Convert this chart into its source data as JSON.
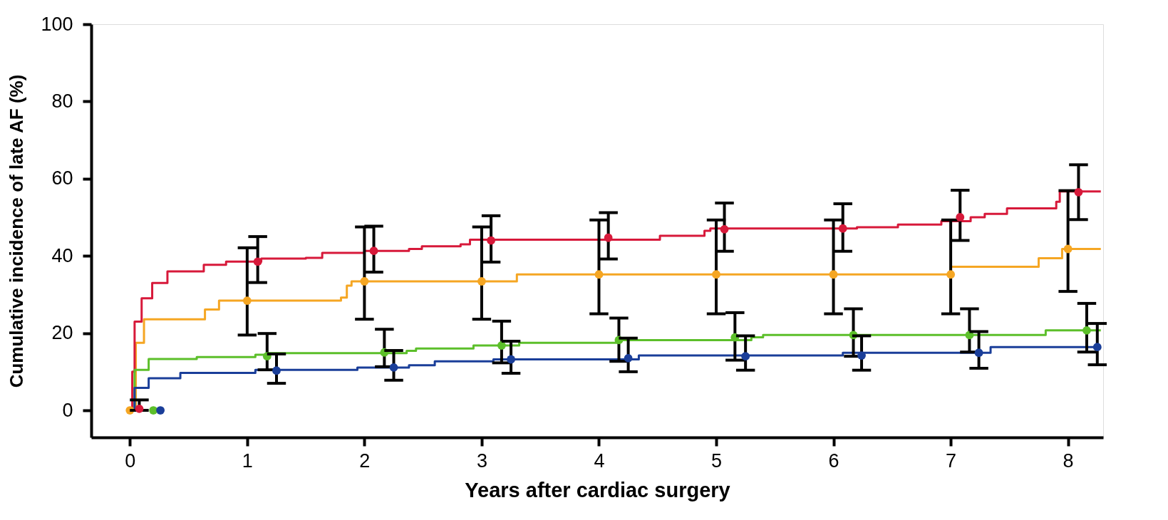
{
  "chart_data": {
    "type": "step",
    "xlabel": "Years after cardiac surgery",
    "ylabel": "Cumulative incidence of late AF (%)",
    "xlim": [
      -0.33,
      8.3
    ],
    "xticks": [
      0,
      1,
      2,
      3,
      4,
      5,
      6,
      7,
      8
    ],
    "ylim": [
      -7,
      100
    ],
    "yticks": [
      0,
      20,
      40,
      60,
      80,
      100
    ],
    "grid": false,
    "line_style": "solid",
    "series": [
      {
        "color": "#f5a623",
        "x": [
          0,
          0.05,
          0.12,
          0.64,
          0.76,
          1.8,
          1.85,
          1.89,
          3.3,
          7.0,
          7.75,
          7.95,
          8.28
        ],
        "values": [
          0,
          17.5,
          23.6,
          26.1,
          28.4,
          29.2,
          32.3,
          33.4,
          35.2,
          37.2,
          39.4,
          41.8,
          41.8
        ]
      },
      {
        "color": "#d7193a",
        "x": [
          0,
          0.02,
          0.04,
          0.1,
          0.19,
          0.32,
          0.63,
          0.82,
          1.12,
          1.5,
          1.64,
          2.0,
          2.38,
          2.49,
          2.82,
          2.9,
          4.52,
          4.9,
          4.95,
          6.2,
          6.55,
          6.92,
          7.17,
          7.29,
          7.48,
          7.9,
          7.93,
          8.28
        ],
        "values": [
          0,
          10,
          23,
          29,
          33,
          36,
          37.7,
          38.5,
          39.3,
          39.5,
          40.8,
          41.3,
          41.8,
          42.5,
          43,
          44.2,
          45.2,
          46.5,
          47.1,
          47.4,
          48.1,
          49,
          50,
          50.9,
          52.3,
          54,
          56.7,
          56.7
        ]
      },
      {
        "color": "#5cbf2a",
        "x": [
          0,
          0.04,
          0.16,
          0.57,
          1.07,
          1.17,
          2.36,
          2.44,
          2.93,
          3.32,
          4.17,
          5.3,
          5.4,
          7.81,
          8.28
        ],
        "values": [
          0,
          10.5,
          13.3,
          13.8,
          14.4,
          14.8,
          15.4,
          16,
          16.8,
          17.5,
          18.2,
          18.9,
          19.5,
          20.7,
          20.7
        ]
      },
      {
        "color": "#1a3e99",
        "x": [
          0,
          0.04,
          0.16,
          0.43,
          1.07,
          1.94,
          2.38,
          2.6,
          3.1,
          4.34,
          6.08,
          7.34,
          8.28
        ],
        "values": [
          0,
          5.8,
          8.3,
          9.7,
          10.5,
          11.1,
          11.7,
          12.7,
          13.2,
          14.2,
          14.9,
          16.4,
          16.4
        ]
      },
      {
        "type": "scatter",
        "color": "#f5a623",
        "marker": "circle",
        "x": [
          0,
          1.0,
          2.0,
          3.0,
          4.0,
          5.0,
          6.0,
          7.0,
          8.0
        ],
        "values": [
          0,
          28.4,
          33.4,
          33.4,
          35.2,
          35.2,
          35.2,
          35.2,
          41.8
        ],
        "errors": [
          null,
          [
            19.5,
            42.1
          ],
          [
            23.6,
            47.5
          ],
          [
            23.6,
            47.5
          ],
          [
            25,
            49.3
          ],
          [
            25,
            49.3
          ],
          [
            25,
            49.3
          ],
          [
            25,
            49.3
          ],
          [
            30.8,
            56.9
          ]
        ]
      },
      {
        "type": "scatter",
        "color": "#d7193a",
        "marker": "circle",
        "x": [
          0.08,
          1.09,
          2.08,
          3.08,
          4.08,
          5.07,
          6.08,
          7.08,
          8.09
        ],
        "values": [
          0.4,
          38.5,
          41.3,
          44,
          44.7,
          46.9,
          47.1,
          50,
          56.5
        ],
        "errors": [
          [
            0,
            2.7
          ],
          [
            33.1,
            45
          ],
          [
            35.8,
            47.7
          ],
          [
            38.4,
            50.4
          ],
          [
            39.2,
            51.2
          ],
          [
            41.2,
            53.7
          ],
          [
            41.2,
            53.5
          ],
          [
            44,
            57
          ],
          [
            49.4,
            63.6
          ]
        ]
      },
      {
        "type": "scatter",
        "color": "#5cbf2a",
        "marker": "circle",
        "x": [
          0.2,
          1.17,
          2.17,
          3.17,
          4.17,
          5.16,
          6.17,
          7.16,
          8.16
        ],
        "values": [
          0,
          14,
          15,
          16.8,
          18.2,
          18.9,
          19.5,
          19.5,
          20.7
        ],
        "errors": [
          null,
          [
            10.5,
            19.9
          ],
          [
            11.3,
            21
          ],
          [
            12.3,
            23.1
          ],
          [
            12.7,
            23.9
          ],
          [
            13,
            25.3
          ],
          [
            14,
            26.3
          ],
          [
            15.1,
            26.3
          ],
          [
            15.1,
            27.7
          ]
        ]
      },
      {
        "type": "scatter",
        "color": "#1a3e99",
        "marker": "circle",
        "x": [
          0.26,
          1.25,
          2.25,
          3.25,
          4.25,
          5.25,
          6.24,
          7.24,
          8.25
        ],
        "values": [
          0,
          10.3,
          11.1,
          13.2,
          13.5,
          14,
          14.2,
          14.9,
          16.4
        ],
        "errors": [
          null,
          [
            7,
            14.6
          ],
          [
            7.8,
            15.5
          ],
          [
            9.6,
            17.9
          ],
          [
            10,
            18.7
          ],
          [
            10.4,
            19.3
          ],
          [
            10.4,
            19.3
          ],
          [
            10.9,
            20.4
          ],
          [
            11.8,
            22.5
          ]
        ]
      }
    ]
  }
}
